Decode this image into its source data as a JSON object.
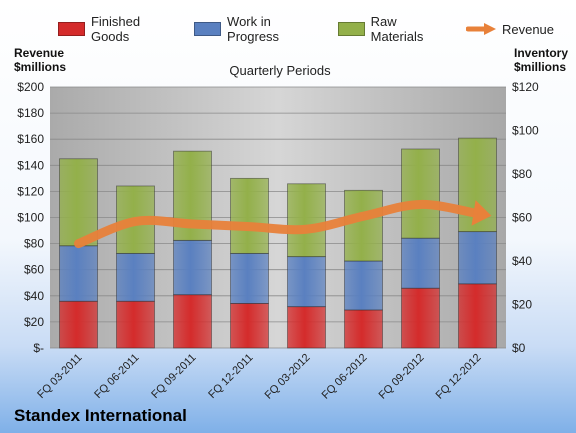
{
  "legend": {
    "finished": "Finished Goods",
    "wip": "Work in Progress",
    "raw": "Raw Materials",
    "revenue": "Revenue"
  },
  "left_axis_title": [
    "Revenue",
    "$millions"
  ],
  "right_axis_title": [
    "Inventory",
    "$millions"
  ],
  "company": "Standex International",
  "colors": {
    "finished": "#d42b2b",
    "wip": "#5a80c0",
    "raw": "#93b04a",
    "revenue": "#e8813a",
    "plot_bg": "#b9b9b9"
  },
  "chart_data": {
    "type": "bar",
    "stacked": true,
    "title": "Quarterly Periods",
    "categories": [
      "FQ 03-2011",
      "FQ 06-2011",
      "FQ 09-2011",
      "FQ 12-2011",
      "FQ 03-2012",
      "FQ 06-2012",
      "FQ 09-2012",
      "FQ 12-2012"
    ],
    "series": [
      {
        "name": "Finished Goods",
        "axis": "right",
        "values": [
          21.5,
          21.5,
          24.5,
          20.5,
          19,
          17.5,
          27.5,
          29.5
        ]
      },
      {
        "name": "Work in Progress",
        "axis": "right",
        "values": [
          25.5,
          22,
          25,
          23,
          23,
          22.5,
          23,
          24
        ]
      },
      {
        "name": "Raw Materials",
        "axis": "right",
        "values": [
          40,
          31,
          41,
          34.5,
          33.5,
          32.5,
          41,
          43
        ]
      },
      {
        "name": "Revenue",
        "axis": "left",
        "type": "line",
        "values": [
          80,
          97,
          95,
          93,
          91,
          101,
          110,
          103
        ]
      }
    ],
    "y_left": {
      "min": 0,
      "max": 200,
      "step": 20,
      "ticks": [
        "$-",
        "$20",
        "$40",
        "$60",
        "$80",
        "$100",
        "$120",
        "$140",
        "$160",
        "$180",
        "$200"
      ]
    },
    "y_right": {
      "min": 0,
      "max": 120,
      "step": 20,
      "ticks": [
        "$0",
        "$20",
        "$40",
        "$60",
        "$80",
        "$100",
        "$120"
      ]
    },
    "grid": true,
    "legend_position": "top"
  }
}
